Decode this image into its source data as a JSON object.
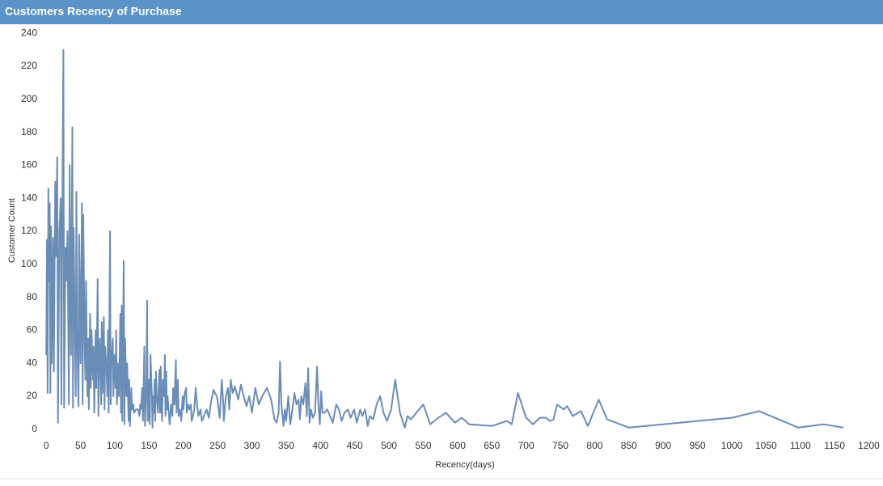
{
  "chart_data": {
    "type": "line",
    "title": "Customers Recency of Purchase",
    "x_label": "Recency(days)",
    "y_label": "Customer Count",
    "xlim": [
      -5,
      1210
    ],
    "ylim": [
      -4,
      245
    ],
    "xticks": [
      0,
      50,
      100,
      150,
      200,
      250,
      300,
      350,
      400,
      450,
      500,
      550,
      600,
      650,
      700,
      750,
      800,
      850,
      900,
      950,
      1000,
      1050,
      1100,
      1150,
      1200
    ],
    "yticks": [
      0,
      20,
      40,
      60,
      80,
      100,
      120,
      140,
      160,
      180,
      200,
      220,
      240
    ],
    "series": [
      {
        "name": "Customer Count",
        "color": "#6a8db8",
        "x": [
          0,
          1,
          2,
          3,
          4,
          5,
          6,
          7,
          8,
          10,
          11,
          13,
          14,
          16,
          17,
          19,
          21,
          22,
          23,
          25,
          26,
          28,
          29,
          31,
          33,
          34,
          36,
          38,
          39,
          40,
          41,
          43,
          44,
          45,
          47,
          48,
          50,
          52,
          53,
          54,
          56,
          57,
          58,
          60,
          61,
          62,
          64,
          65,
          66,
          68,
          69,
          70,
          72,
          73,
          75,
          76,
          77,
          78,
          80,
          81,
          82,
          84,
          85,
          86,
          88,
          89,
          90,
          91,
          93,
          94,
          95,
          97,
          98,
          99,
          101,
          102,
          103,
          105,
          106,
          108,
          109,
          110,
          111,
          113,
          114,
          115,
          117,
          118,
          120,
          121,
          122,
          124,
          125,
          127,
          128,
          131,
          134,
          136,
          137,
          138,
          140,
          141,
          143,
          144,
          146,
          147,
          148,
          149,
          150,
          151,
          152,
          153,
          154,
          155,
          156,
          157,
          158,
          159,
          160,
          161,
          163,
          164,
          165,
          166,
          167,
          168,
          169,
          170,
          172,
          173,
          174,
          175,
          176,
          177,
          179,
          180,
          182,
          184,
          185,
          187,
          189,
          190,
          192,
          193,
          195,
          197,
          199,
          200,
          202,
          204,
          205,
          207,
          209,
          211,
          212,
          214,
          216,
          218,
          220,
          222,
          225,
          227,
          230,
          234,
          237,
          241,
          244,
          246,
          249,
          253,
          256,
          258,
          259,
          262,
          265,
          267,
          269,
          272,
          275,
          280,
          284,
          288,
          292,
          296,
          300,
          305,
          310,
          315,
          322,
          328,
          333,
          336,
          339,
          341,
          343,
          346,
          348,
          350,
          353,
          356,
          359,
          362,
          365,
          368,
          370,
          372,
          375,
          378,
          380,
          382,
          384,
          386,
          389,
          392,
          395,
          397,
          399,
          401,
          403,
          406,
          410,
          414,
          418,
          423,
          427,
          431,
          435,
          440,
          444,
          449,
          453,
          458,
          461,
          465,
          469,
          472,
          477,
          482,
          487,
          492,
          497,
          503,
          509,
          516,
          523,
          527,
          532,
          540,
          550,
          560,
          572,
          583,
          596,
          606,
          617,
          650,
          672,
          679,
          688,
          700,
          710,
          720,
          729,
          735,
          740,
          745,
          755,
          760,
          768,
          780,
          790,
          806,
          818,
          850,
          1000,
          1040,
          1097,
          1134,
          1163
        ],
        "values": [
          45,
          115,
          22,
          146,
          90,
          137,
          22,
          123,
          40,
          116,
          35,
          150,
          105,
          165,
          4,
          118,
          140,
          15,
          100,
          230,
          13,
          110,
          90,
          120,
          15,
          160,
          45,
          183,
          13,
          122,
          85,
          20,
          144,
          60,
          14,
          118,
          40,
          137,
          15,
          130,
          50,
          30,
          90,
          20,
          55,
          12,
          70,
          25,
          60,
          30,
          50,
          10,
          60,
          25,
          91,
          8,
          40,
          55,
          15,
          65,
          22,
          68,
          12,
          50,
          35,
          20,
          60,
          10,
          120,
          15,
          40,
          55,
          20,
          45,
          25,
          60,
          15,
          40,
          20,
          70,
          10,
          75,
          5,
          102,
          3,
          55,
          20,
          40,
          5,
          30,
          2,
          25,
          12,
          15,
          10,
          12,
          12,
          8,
          15,
          12,
          25,
          5,
          50,
          2,
          25,
          78,
          5,
          10,
          30,
          3,
          45,
          35,
          20,
          1,
          20,
          10,
          30,
          5,
          35,
          22,
          10,
          25,
          36,
          10,
          38,
          15,
          5,
          30,
          20,
          45,
          8,
          35,
          12,
          20,
          8,
          3,
          15,
          8,
          25,
          15,
          42,
          10,
          30,
          8,
          12,
          5,
          20,
          12,
          22,
          25,
          10,
          15,
          12,
          15,
          5,
          8,
          12,
          25,
          15,
          8,
          12,
          5,
          8,
          12,
          7,
          18,
          24,
          22,
          20,
          7,
          30,
          17,
          5,
          20,
          25,
          12,
          30,
          22,
          26,
          18,
          27,
          20,
          14,
          20,
          10,
          25,
          15,
          20,
          25,
          18,
          6,
          4,
          10,
          41,
          15,
          2,
          12,
          5,
          20,
          3,
          12,
          22,
          15,
          18,
          6,
          20,
          15,
          28,
          8,
          37,
          4,
          12,
          7,
          10,
          38,
          15,
          3,
          23,
          10,
          10,
          12,
          8,
          4,
          15,
          12,
          5,
          10,
          12,
          7,
          12,
          4,
          12,
          8,
          12,
          2,
          8,
          6,
          15,
          20,
          10,
          5,
          12,
          30,
          10,
          1,
          8,
          6,
          10,
          15,
          3,
          7,
          10,
          4,
          7,
          3,
          2,
          5,
          3,
          22,
          7,
          3,
          7,
          7,
          5,
          6,
          15,
          12,
          14,
          8,
          11,
          2,
          18,
          6,
          1,
          7,
          11,
          1,
          3,
          1
        ]
      }
    ]
  }
}
